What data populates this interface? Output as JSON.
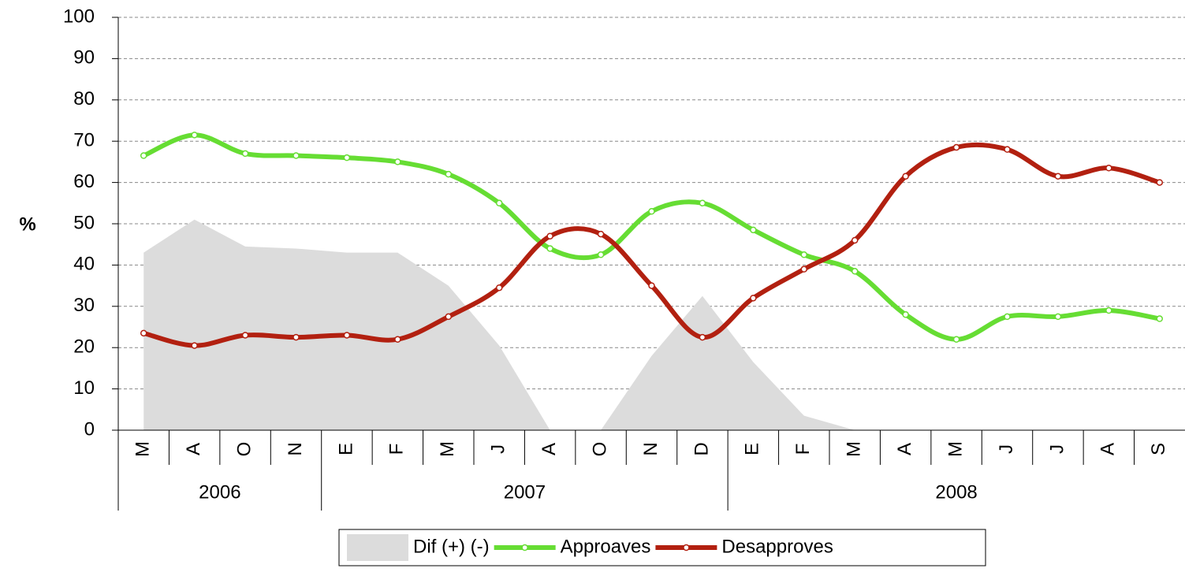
{
  "chart_data": {
    "type": "line",
    "y_label": "%",
    "year_groups": [
      {
        "label": "2006",
        "categories": [
          "M",
          "A",
          "O",
          "N"
        ]
      },
      {
        "label": "2007",
        "categories": [
          "E",
          "F",
          "M",
          "J",
          "A",
          "O",
          "N",
          "D"
        ]
      },
      {
        "label": "2008",
        "categories": [
          "E",
          "F",
          "M",
          "A",
          "M",
          "J",
          "J",
          "A",
          "S"
        ]
      }
    ],
    "series": [
      {
        "name": "Dif (+) (-)",
        "kind": "area",
        "color": "#dcdcdc",
        "values": [
          43,
          51,
          44.5,
          44,
          43,
          43,
          35,
          20.5,
          0,
          0,
          18,
          32.5,
          16.5,
          3.5,
          0,
          0,
          0,
          0,
          0,
          0,
          0
        ]
      },
      {
        "name": "Approaves",
        "kind": "line",
        "color": "#66dd33",
        "values": [
          66.5,
          71.5,
          67,
          66.5,
          66,
          65,
          62,
          55,
          44,
          42.5,
          53,
          55,
          48.5,
          42.5,
          38.5,
          28,
          22,
          27.5,
          27.5,
          29,
          27
        ]
      },
      {
        "name": "Desapproves",
        "kind": "line",
        "color": "#b22010",
        "values": [
          23.5,
          20.5,
          23,
          22.5,
          23,
          22,
          27.5,
          34.5,
          47,
          47.5,
          35,
          22.5,
          32,
          39,
          46,
          61.5,
          68.5,
          68,
          61.5,
          63.5,
          60
        ]
      }
    ],
    "ylim": [
      0,
      100
    ],
    "yticks": [
      0,
      10,
      20,
      30,
      40,
      50,
      60,
      70,
      80,
      90,
      100
    ],
    "grid": true
  }
}
